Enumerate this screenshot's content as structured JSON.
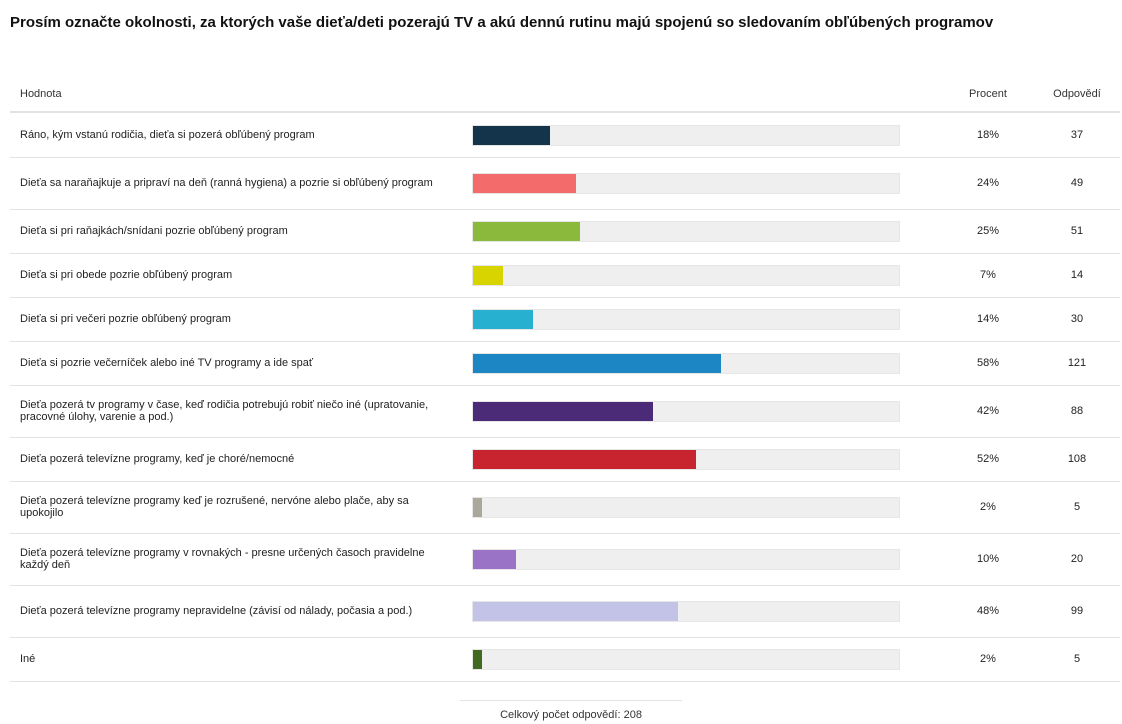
{
  "title": "Prosím označte okolnosti, za ktorých vaše dieťa/deti pozerajú TV a akú dennú rutinu majú spojenú so sledovaním obľúbených programov",
  "header": {
    "label": "Hodnota",
    "percent": "Procent",
    "count": "Odpovědí"
  },
  "footer": "Celkový počet odpovědí: 208",
  "chart_data": {
    "type": "bar",
    "orientation": "horizontal",
    "title": "Prosím označte okolnosti, za ktorých vaše dieťa/deti pozerajú TV a akú dennú rutinu majú spojenú so sledovaním obľúbených programov",
    "xlim": [
      0,
      100
    ],
    "rows": [
      {
        "label": "Ráno, kým vstanú rodičia, dieťa si pozerá obľúbený program",
        "percent": 18,
        "percent_text": "18%",
        "count": "37",
        "color": "#13344a"
      },
      {
        "label": "Dieťa sa naraňajkuje a pripraví na deň (ranná hygiena) a pozrie si obľúbený program",
        "percent": 24,
        "percent_text": "24%",
        "count": "49",
        "color": "#f46b6b"
      },
      {
        "label": "Dieťa si pri raňajkách/snídani pozrie obľúbený program",
        "percent": 25,
        "percent_text": "25%",
        "count": "51",
        "color": "#8ab93c"
      },
      {
        "label": "Dieťa si pri obede pozrie obľúbený program",
        "percent": 7,
        "percent_text": "7%",
        "count": "14",
        "color": "#d8d400"
      },
      {
        "label": "Dieťa si pri večeri pozrie obľúbený program",
        "percent": 14,
        "percent_text": "14%",
        "count": "30",
        "color": "#27b0d0"
      },
      {
        "label": "Dieťa si pozrie večerníček alebo iné TV programy a ide spať",
        "percent": 58,
        "percent_text": "58%",
        "count": "121",
        "color": "#1c86c4"
      },
      {
        "label": "Dieťa pozerá tv programy v čase, keď rodičia potrebujú robiť niečo iné (upratovanie, pracovné úlohy, varenie a pod.)",
        "percent": 42,
        "percent_text": "42%",
        "count": "88",
        "color": "#4b2a78"
      },
      {
        "label": "Dieťa pozerá televízne programy, keď je choré/nemocné",
        "percent": 52,
        "percent_text": "52%",
        "count": "108",
        "color": "#c8242f"
      },
      {
        "label": "Dieťa pozerá televízne programy keď je rozrušené, nervóne alebo plače, aby sa upokojilo",
        "percent": 2,
        "percent_text": "2%",
        "count": "5",
        "color": "#a9a89a"
      },
      {
        "label": "Dieťa pozerá televízne programy v rovnakých - presne určených časoch pravidelne každý deň",
        "percent": 10,
        "percent_text": "10%",
        "count": "20",
        "color": "#9a73c7"
      },
      {
        "label": "Dieťa pozerá televízne programy nepravidelne (závisí od nálady, počasia a pod.)",
        "percent": 48,
        "percent_text": "48%",
        "count": "99",
        "color": "#c2c3e6"
      },
      {
        "label": "Iné",
        "percent": 2,
        "percent_text": "2%",
        "count": "5",
        "color": "#3f6a1f"
      }
    ]
  }
}
